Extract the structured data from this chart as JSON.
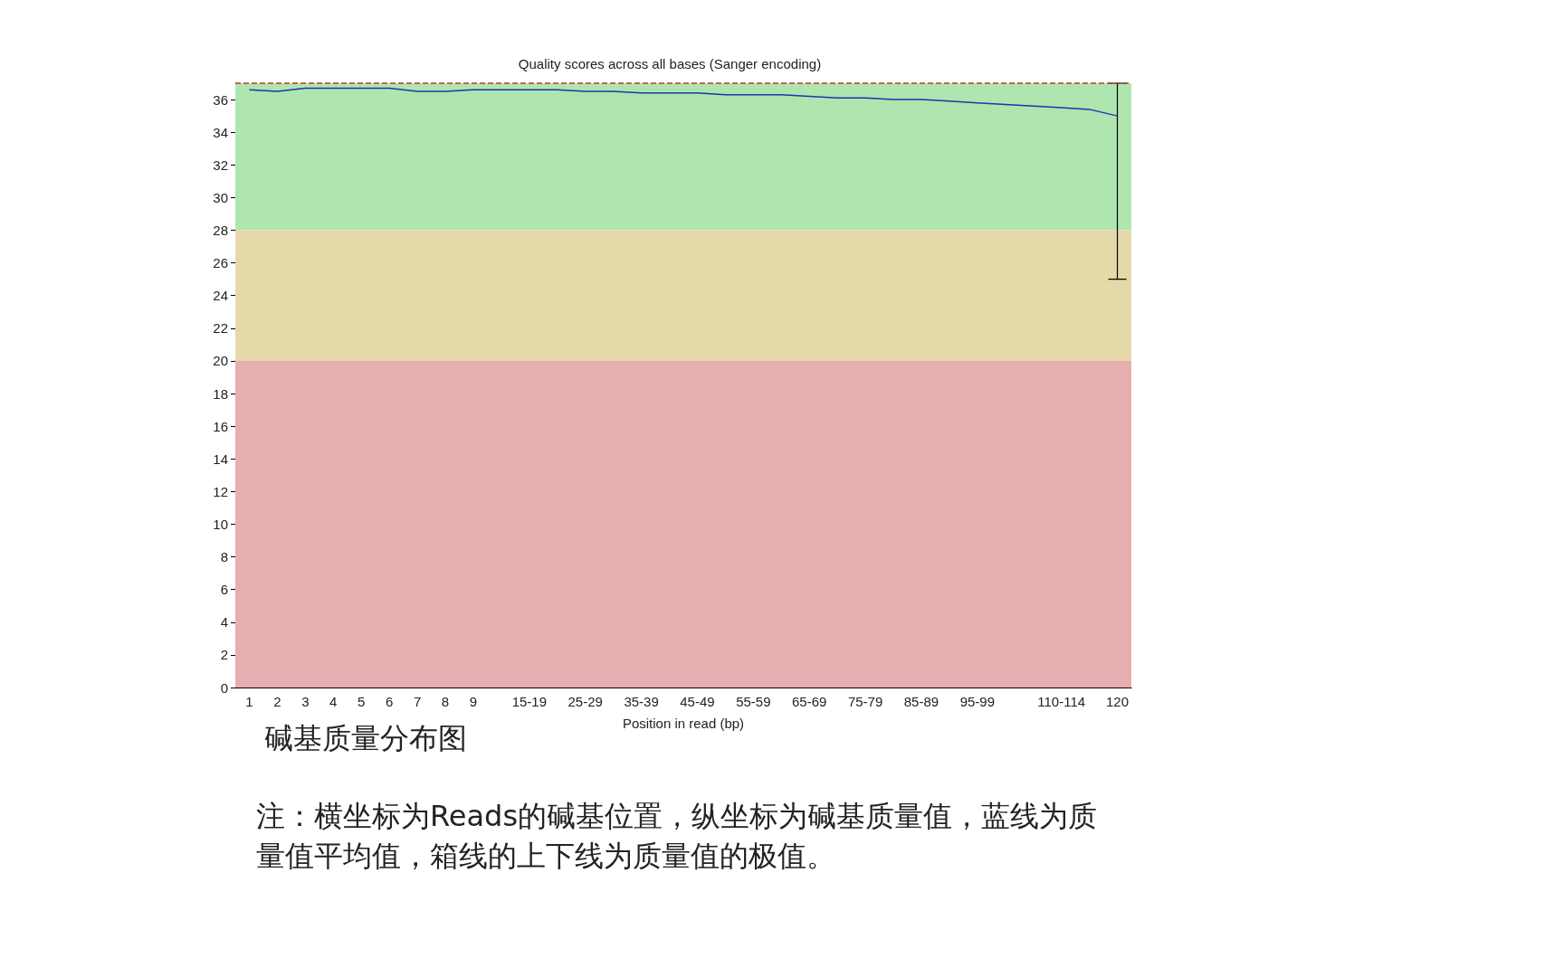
{
  "chart_data": {
    "type": "line",
    "title": "Quality scores across all bases (Sanger encoding)",
    "xlabel": "Position in read (bp)",
    "categories": [
      "1",
      "2",
      "3",
      "4",
      "5",
      "6",
      "7",
      "8",
      "9",
      null,
      "15-19",
      null,
      "25-29",
      null,
      "35-39",
      null,
      "45-49",
      null,
      "55-59",
      null,
      "65-69",
      null,
      "75-79",
      null,
      "85-89",
      null,
      "95-99",
      null,
      null,
      "110-114",
      null,
      "120"
    ],
    "series": [
      {
        "color": "#2233aa",
        "values": [
          36.6,
          36.5,
          36.7,
          36.7,
          36.7,
          36.7,
          36.5,
          36.5,
          36.6,
          36.6,
          36.6,
          36.6,
          36.5,
          36.5,
          36.4,
          36.4,
          36.4,
          36.3,
          36.3,
          36.3,
          36.2,
          36.1,
          36.1,
          36.0,
          36.0,
          35.9,
          35.8,
          35.7,
          35.6,
          35.5,
          35.4,
          35.0
        ]
      },
      {
        "type": "box",
        "color": "#000000",
        "boxes": [
          null,
          null,
          null,
          null,
          null,
          null,
          null,
          null,
          null,
          null,
          null,
          null,
          null,
          null,
          null,
          null,
          null,
          null,
          null,
          null,
          null,
          null,
          null,
          null,
          null,
          null,
          null,
          null,
          null,
          null,
          null,
          {
            "low": 25,
            "q1": 37,
            "median": 37,
            "q3": 37,
            "high": 37
          }
        ]
      }
    ],
    "ylim": [
      0,
      37
    ],
    "yticks": [
      0,
      2,
      4,
      6,
      8,
      10,
      12,
      14,
      16,
      18,
      20,
      22,
      24,
      26,
      28,
      30,
      32,
      34,
      36
    ],
    "bands": [
      {
        "axis": "y",
        "from": 28,
        "to": 37,
        "color": "#afe6b0"
      },
      {
        "axis": "y",
        "from": 20,
        "to": 28,
        "color": "#e6d9a9"
      },
      {
        "axis": "y",
        "from": 0,
        "to": 20,
        "color": "#e6aeb0"
      }
    ],
    "ref_lines": [
      {
        "axis": "y",
        "value": 37,
        "color": "#c0392b",
        "line_style": "dashed"
      }
    ],
    "grid": false,
    "marker": "none",
    "line_style": "solid",
    "annotations": [
      "碱基质量分布图",
      "注：横坐标为Reads的碱基位置，纵坐标为碱基质量值，蓝线为质量值平均值，箱线的上下线为质量值的极值。"
    ]
  }
}
